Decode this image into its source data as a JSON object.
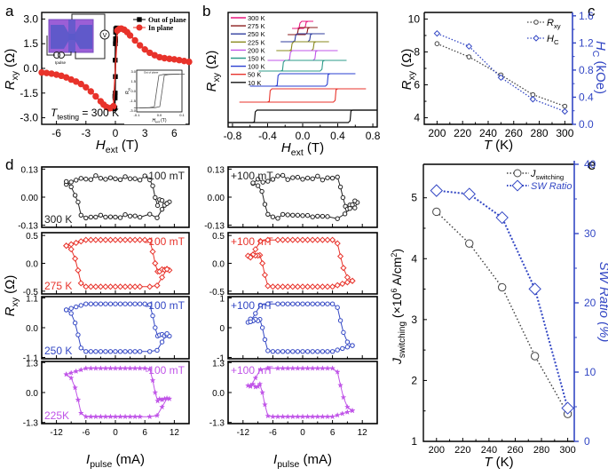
{
  "figure": {
    "panel_labels": [
      "a",
      "b",
      "c",
      "d",
      "e"
    ]
  },
  "chart_data": [
    {
      "id": "a",
      "type": "line",
      "xlabel": "H",
      "xlabel_sub": "ext",
      "xlabel_unit": "(T)",
      "ylabel": "R",
      "ylabel_sub": "xy",
      "ylabel_unit": "(Ω)",
      "xlim": [
        -7.5,
        7.5
      ],
      "ylim": [
        -3.4,
        3.4
      ],
      "xticks": [
        -6,
        -3,
        0,
        3,
        6
      ],
      "xtick_labels": [
        "-6",
        "-3",
        "0",
        "3",
        "6"
      ],
      "yticks": [
        3.0,
        1.5,
        0.0,
        -1.5,
        -3.0
      ],
      "ytick_labels": [
        "3.0",
        "1.5",
        "0.0",
        "-1.5",
        "-3.0"
      ],
      "annotation": {
        "prefix": "T",
        "sub": "testing",
        "text": " = 300 K"
      },
      "legend": [
        "Out of plane",
        "In plane"
      ],
      "legend_position": "top-right",
      "series": [
        {
          "name": "Out of plane",
          "color": "#000000",
          "marker": "square",
          "x": [
            -0.15,
            -0.05,
            -0.03,
            -0.02,
            0.0,
            0.02,
            0.03,
            0.05,
            0.15,
            0.15,
            0.05,
            0.02,
            0.0,
            -0.02,
            -0.05,
            -0.15
          ],
          "y": [
            -2.45,
            -2.4,
            -1.8,
            -1.5,
            -0.5,
            1.7,
            2.2,
            2.4,
            2.45,
            2.45,
            2.4,
            1.8,
            1.5,
            0.5,
            -1.7,
            -2.45
          ]
        },
        {
          "name": "In plane",
          "color": "#e8332b",
          "marker": "circle",
          "x": [
            -7.5,
            -7.0,
            -6.5,
            -6.0,
            -5.5,
            -5.0,
            -4.5,
            -4.0,
            -3.5,
            -3.0,
            -2.5,
            -2.0,
            -1.5,
            -1.2,
            -0.9,
            -0.6,
            -0.4,
            -0.2,
            0.2,
            0.4,
            0.6,
            0.9,
            1.2,
            1.5,
            2.0,
            2.5,
            3.0,
            3.5,
            4.0,
            4.5,
            5.0,
            5.5,
            6.0,
            6.5,
            7.0,
            7.5
          ],
          "y": [
            -0.25,
            -0.28,
            -0.32,
            -0.38,
            -0.45,
            -0.55,
            -0.68,
            -0.8,
            -0.95,
            -1.15,
            -1.4,
            -1.7,
            -2.0,
            -2.2,
            -2.35,
            -2.42,
            -2.4,
            -2.3,
            2.3,
            2.4,
            2.42,
            2.35,
            2.2,
            2.0,
            1.7,
            1.4,
            1.15,
            0.95,
            0.8,
            0.68,
            0.62,
            0.58,
            0.55,
            0.5,
            0.45,
            0.4
          ]
        }
      ],
      "inset": {
        "xlabel": "H",
        "xlabel_sub": "ext",
        "xlabel_unit": "(T)",
        "ylabel": "R",
        "ylabel_sub": "xy",
        "xlim": [
          -0.1,
          0.1
        ],
        "ylim": [
          -3.0,
          3.0
        ],
        "xtick_labels": [
          "-0.1",
          "0.0",
          "0.1"
        ],
        "ytick_labels": [
          "3.0",
          "1.5",
          "0.0",
          "-1.5",
          "-3.0"
        ],
        "legend": [
          "Out of plane"
        ]
      },
      "schematic": {
        "current_source_label": "I",
        "current_source_sub": "pulse",
        "meter_label": "V"
      }
    },
    {
      "id": "b",
      "type": "line",
      "xlabel": "H",
      "xlabel_sub": "ext",
      "xlabel_unit": "(T)",
      "ylabel": "R",
      "ylabel_sub": "xy",
      "ylabel_unit": "(Ω)",
      "xlim": [
        -0.85,
        0.85
      ],
      "xticks": [
        -0.8,
        -0.4,
        0.0,
        0.4,
        0.8
      ],
      "xtick_labels": [
        "-0.8",
        "-0.4",
        "0.0",
        "0.4",
        "0.8"
      ],
      "legend_position": "top-left",
      "series": [
        {
          "name": "300 K",
          "color": "#e8197f",
          "hc": 0.03,
          "xmax": 0.12,
          "offset": 8
        },
        {
          "name": "275 K",
          "color": "#8b1a1a",
          "hc": 0.05,
          "xmax": 0.17,
          "offset": 7
        },
        {
          "name": "250 K",
          "color": "#2f3d9e",
          "hc": 0.08,
          "xmax": 0.25,
          "offset": 6
        },
        {
          "name": "225 K",
          "color": "#8a8a1e",
          "hc": 0.12,
          "xmax": 0.3,
          "offset": 5
        },
        {
          "name": "200 K",
          "color": "#c054e8",
          "hc": 0.14,
          "xmax": 0.4,
          "offset": 4
        },
        {
          "name": "150 K",
          "color": "#2e9b8a",
          "hc": 0.22,
          "xmax": 0.5,
          "offset": 3
        },
        {
          "name": "100 K",
          "color": "#2a3fd1",
          "hc": 0.28,
          "xmax": 0.6,
          "offset": 2
        },
        {
          "name": "50 K",
          "color": "#e8332b",
          "hc": 0.37,
          "xmax": 0.72,
          "offset": 1
        },
        {
          "name": "10 K",
          "color": "#111111",
          "hc": 0.54,
          "xmax": 0.85,
          "offset": 0
        }
      ]
    },
    {
      "id": "c",
      "type": "line",
      "xlabel": "T",
      "xlabel_unit": "(K)",
      "ylabel": "R",
      "ylabel_sub": "xy",
      "ylabel_unit": "(Ω)",
      "y2label": "H",
      "y2label_sub": "C",
      "y2label_unit": "(kOe)",
      "x": [
        200,
        225,
        250,
        275,
        300
      ],
      "xlim": [
        190,
        306
      ],
      "ylim": [
        3.6,
        10.4
      ],
      "y2lim": [
        0.0,
        1.65
      ],
      "xtick_labels": [
        "200",
        "220",
        "240",
        "260",
        "280",
        "300"
      ],
      "ytick_labels": [
        "10",
        "8",
        "6",
        "4"
      ],
      "y2tick_labels": [
        "1.6",
        "1.2",
        "0.8",
        "0.4",
        "0.0"
      ],
      "legend_position": "top-right",
      "series": [
        {
          "name": "R",
          "name_sub": "xy",
          "axis": "left",
          "color": "#444444",
          "marker": "circle",
          "values": [
            8.5,
            7.7,
            6.6,
            5.4,
            4.7
          ]
        },
        {
          "name": "H",
          "name_sub": "C",
          "axis": "right",
          "color": "#3347c4",
          "marker": "diamond",
          "values": [
            1.34,
            1.15,
            0.69,
            0.37,
            0.19
          ]
        }
      ]
    },
    {
      "id": "d",
      "type": "line",
      "xlabel": "I",
      "xlabel_sub": "pulse",
      "xlabel_unit": "(mA)",
      "ylabel": "R",
      "ylabel_sub": "xy",
      "ylabel_unit": "(Ω)",
      "xlim": [
        -15,
        15
      ],
      "xtick_labels": [
        "-12",
        "-6",
        "0",
        "6",
        "12"
      ],
      "rows": [
        {
          "temp": "300 K",
          "color": "#222222",
          "marker": "circle",
          "ylim": [
            -0.14,
            0.14
          ],
          "ytick_labels": [
            "0.13",
            "0.00",
            "-0.13"
          ],
          "yticks": [
            0.13,
            0.0,
            -0.13
          ],
          "amp": 0.09,
          "left_field": "-100 mT",
          "right_field": "+100 mT",
          "right_ytick_labels": [
            "0.13",
            "0.00",
            "-0.13"
          ],
          "noisy": true
        },
        {
          "temp": "275 K",
          "color": "#e8332b",
          "marker": "diamond",
          "ylim": [
            -0.55,
            0.55
          ],
          "ytick_labels": [
            "0.5",
            "0.0",
            "-0.5"
          ],
          "yticks": [
            0.5,
            0.0,
            -0.5
          ],
          "amp": 0.42,
          "left_field": "-100 mT",
          "right_field": "+100 mT",
          "right_ytick_labels": [
            "0.5",
            "0.0",
            "-0.5"
          ]
        },
        {
          "temp": "250 K",
          "color": "#3347c4",
          "marker": "circle",
          "ylim": [
            -1.15,
            1.15
          ],
          "ytick_labels": [
            "1.1",
            "0.0",
            "-1.1"
          ],
          "yticks": [
            1.1,
            0.0,
            -1.1
          ],
          "amp": 0.88,
          "left_field": "-100 mT",
          "right_field": "+100 mT",
          "right_ytick_labels": [
            "1",
            "0",
            "-1"
          ]
        },
        {
          "temp": "225K",
          "color": "#c054e8",
          "marker": "star",
          "ylim": [
            -1.35,
            1.35
          ],
          "ytick_labels": [
            "1.3",
            "0.0",
            "-1.3"
          ],
          "yticks": [
            1.3,
            0.0,
            -1.3
          ],
          "amp": 1.05,
          "left_field": "-100 mT",
          "right_field": "+100 mT",
          "right_ytick_labels": [
            "1.3",
            "0.0",
            "-1.3"
          ]
        }
      ]
    },
    {
      "id": "e",
      "type": "line",
      "xlabel": "T",
      "xlabel_unit": "(K)",
      "ylabel": "J",
      "ylabel_sub": "switching",
      "ylabel_unit": "(×10",
      "ylabel_exp": "6",
      "ylabel_unit2": " A/cm",
      "ylabel_exp2": "2",
      "ylabel_close": ")",
      "y2label": "SW Ratio (%)",
      "x": [
        200,
        225,
        250,
        275,
        300
      ],
      "xlim": [
        190,
        305
      ],
      "ylim": [
        1.0,
        5.55
      ],
      "y2lim": [
        0,
        40
      ],
      "xtick_labels": [
        "200",
        "220",
        "240",
        "260",
        "280",
        "300"
      ],
      "ytick_labels": [
        "5",
        "4",
        "3",
        "2",
        "1"
      ],
      "y2tick_labels": [
        "40",
        "30",
        "20",
        "10",
        "0"
      ],
      "legend_position": "top-right",
      "series": [
        {
          "name": "J",
          "name_sub": "switching",
          "axis": "left",
          "color": "#444444",
          "marker": "circle",
          "values": [
            4.77,
            4.25,
            3.53,
            2.4,
            1.45
          ]
        },
        {
          "name": "SW Ratio",
          "axis": "right",
          "color": "#3347c4",
          "marker": "diamond",
          "values": [
            36.2,
            35.7,
            32.3,
            22.0,
            4.8
          ]
        }
      ]
    }
  ]
}
